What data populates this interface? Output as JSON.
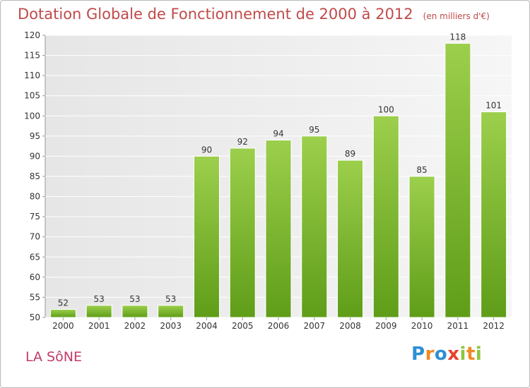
{
  "header": {
    "title": "Dotation Globale de Fonctionnement de 2000 à 2012",
    "unit": "(en milliers d'€)"
  },
  "footer": {
    "commune": "LA SôNE",
    "brand": "Proxiti"
  },
  "colors": {
    "bar": "#8cc63f",
    "bar_dark": "#5a9a1b",
    "title": "#c04a4a",
    "commune": "#c23a6a"
  },
  "chart_data": {
    "type": "bar",
    "title": "Dotation Globale de Fonctionnement de 2000 à 2012",
    "categories": [
      "2000",
      "2001",
      "2002",
      "2003",
      "2004",
      "2005",
      "2006",
      "2007",
      "2008",
      "2009",
      "2010",
      "2011",
      "2012"
    ],
    "values": [
      52,
      53,
      53,
      53,
      90,
      92,
      94,
      95,
      89,
      100,
      85,
      118,
      101
    ],
    "ylim": [
      50,
      120
    ],
    "yticks": [
      50,
      55,
      60,
      65,
      70,
      75,
      80,
      85,
      90,
      95,
      100,
      105,
      110,
      115,
      120
    ],
    "grid": true,
    "xlabel": "",
    "ylabel": ""
  }
}
